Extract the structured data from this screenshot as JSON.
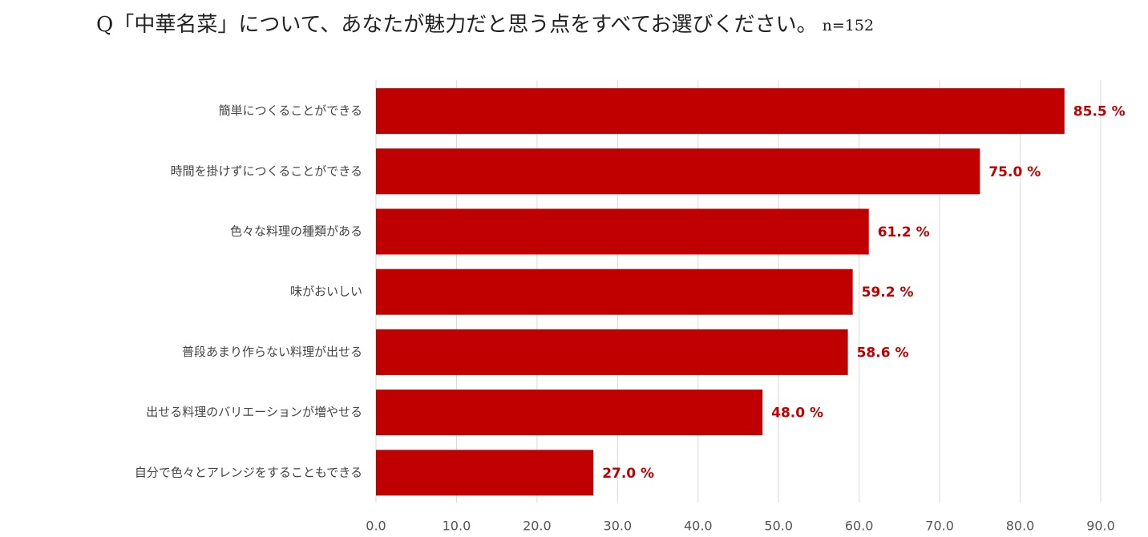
{
  "chart_data": {
    "type": "hbar",
    "title": "Q「中華名菜」について、あなたが魅力だと思う点をすべてお選びください。",
    "subtitle": "n=152",
    "categories": [
      "簡単につくることができる",
      "時間を掛けずにつくることができる",
      "色々な料理の種類がある",
      "味がおいしい",
      "普段あまり作らない料理が出せる",
      "出せる料理のバリエーションが増やせる",
      "自分で色々とアレンジをすることもできる"
    ],
    "values": [
      85.5,
      75.0,
      61.2,
      59.2,
      58.6,
      48.0,
      27.0
    ],
    "value_labels": [
      "85.5 %",
      "75.0 %",
      "61.2 %",
      "59.2 %",
      "58.6 %",
      "48.0 %",
      "27.0 %"
    ],
    "color": "#c00000",
    "xlim": [
      0,
      90
    ],
    "xticks": [
      {
        "value": 0,
        "label": "0.0"
      },
      {
        "value": 10,
        "label": "10.0"
      },
      {
        "value": 20,
        "label": "20.0"
      },
      {
        "value": 30,
        "label": "30.0"
      },
      {
        "value": 40,
        "label": "40.0"
      },
      {
        "value": 50,
        "label": "50.0"
      },
      {
        "value": 60,
        "label": "60.0"
      },
      {
        "value": 70,
        "label": "70.0"
      },
      {
        "value": 80,
        "label": "80.0"
      },
      {
        "value": 90,
        "label": "90.0"
      }
    ],
    "grid": true
  }
}
